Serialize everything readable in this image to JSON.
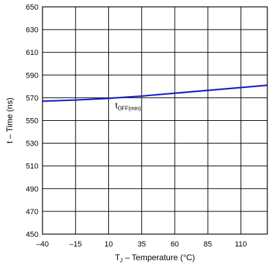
{
  "chart_data": {
    "type": "line",
    "xlabel": {
      "base": "T",
      "sub": "J",
      "rest": " – Temperature (°C)"
    },
    "ylabel": "t – Time (ns)",
    "xlim": [
      -40,
      130
    ],
    "ylim": [
      450,
      650
    ],
    "x_ticks": [
      -40,
      -15,
      10,
      35,
      60,
      85,
      110
    ],
    "x_tick_labels": [
      "–40",
      "–15",
      "10",
      "35",
      "60",
      "85",
      "110"
    ],
    "y_ticks": [
      450,
      470,
      490,
      510,
      530,
      550,
      570,
      590,
      610,
      630,
      650
    ],
    "grid": true,
    "series": [
      {
        "label": {
          "base": "t",
          "sub": "OFF(min)"
        },
        "color": "#1a1acc",
        "x": [
          -40,
          -15,
          10,
          35,
          60,
          85,
          110,
          130
        ],
        "y": [
          567,
          568,
          569.5,
          571.5,
          574,
          576.5,
          579,
          581
        ]
      }
    ],
    "annotation": {
      "x": 15,
      "y": 561
    }
  }
}
